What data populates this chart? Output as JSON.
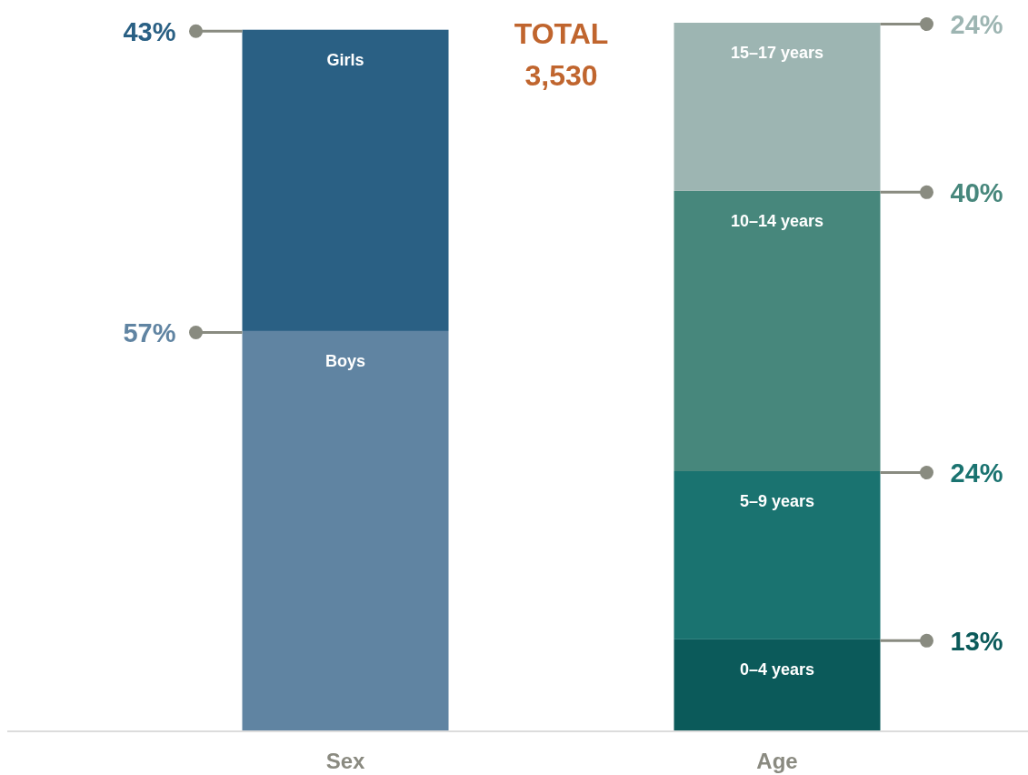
{
  "chart_data": {
    "type": "bar",
    "stacked": true,
    "categories": [
      "Sex",
      "Age"
    ],
    "annotations": [
      "TOTAL",
      "3,530"
    ],
    "series": [
      {
        "name": "Boys",
        "color": "#6084a2",
        "values": [
          57,
          null
        ],
        "value_labels": [
          "57%",
          null
        ]
      },
      {
        "name": "Girls",
        "color": "#2a6084",
        "values": [
          43,
          null
        ],
        "value_labels": [
          "43%",
          null
        ]
      },
      {
        "name": "0–4 years",
        "color": "#0b5a5a",
        "values": [
          null,
          13
        ],
        "value_labels": [
          null,
          "13%"
        ]
      },
      {
        "name": "5–9 years",
        "color": "#1a7370",
        "values": [
          null,
          24
        ],
        "value_labels": [
          null,
          "24%"
        ]
      },
      {
        "name": "10–14 years",
        "color": "#47877c",
        "values": [
          null,
          40
        ],
        "value_labels": [
          null,
          "40%"
        ]
      },
      {
        "name": "15–17 years",
        "color": "#9db5b2",
        "values": [
          null,
          24
        ],
        "value_labels": [
          null,
          "24%"
        ]
      }
    ]
  }
}
